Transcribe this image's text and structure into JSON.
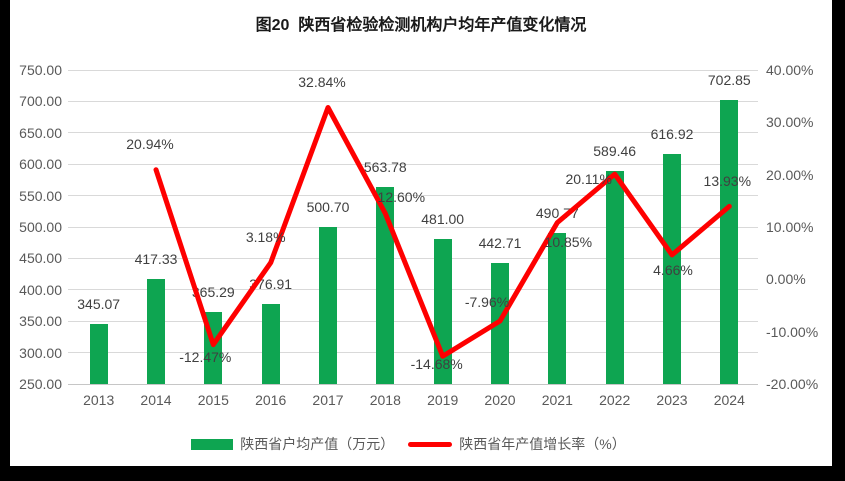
{
  "chart_data": {
    "type": "bar+line",
    "title": "图20  陕西省检验检测机构户均年产值变化情况",
    "categories": [
      "2013",
      "2014",
      "2015",
      "2016",
      "2017",
      "2018",
      "2019",
      "2020",
      "2021",
      "2022",
      "2023",
      "2024"
    ],
    "series": [
      {
        "name": "陕西省户均产值（万元）",
        "type": "bar",
        "axis": "left",
        "color": "#0ea551",
        "values": [
          345.07,
          417.33,
          365.29,
          376.91,
          500.7,
          563.78,
          481.0,
          442.71,
          490.77,
          589.46,
          616.92,
          702.85
        ],
        "labels": [
          "345.07",
          "417.33",
          "365.29",
          "376.91",
          "500.70",
          "563.78",
          "481.00",
          "442.71",
          "490.77",
          "589.46",
          "616.92",
          "702.85"
        ]
      },
      {
        "name": "陕西省年产值增长率（%）",
        "type": "line",
        "axis": "right",
        "color": "#fe0000",
        "values": [
          null,
          20.94,
          -12.47,
          3.18,
          32.84,
          12.6,
          -14.68,
          -7.96,
          10.85,
          20.11,
          4.66,
          13.93
        ],
        "labels": [
          null,
          "20.94%",
          "-12.47%",
          "3.18%",
          "32.84%",
          "12.60%",
          "-14.68%",
          "-7.96%",
          "10.85%",
          "20.11%",
          "4.66%",
          "13.93%"
        ]
      }
    ],
    "left_axis": {
      "min": 250,
      "max": 750,
      "step": 50,
      "tick_labels": [
        "750.00",
        "700.00",
        "650.00",
        "600.00",
        "550.00",
        "500.00",
        "450.00",
        "400.00",
        "350.00",
        "300.00",
        "250.00"
      ]
    },
    "right_axis": {
      "min": -20,
      "max": 40,
      "step": 10,
      "tick_labels": [
        "40.00%",
        "30.00%",
        "20.00%",
        "10.00%",
        "0.00%",
        "-10.00%",
        "-20.00%"
      ]
    },
    "grid": true,
    "legend_position": "bottom",
    "background": "#ffffff",
    "frame_color": "#000000",
    "gridline_color": "#d9d9d9",
    "line_label_offsets": [
      null,
      [
        -6,
        -26
      ],
      [
        -8,
        12
      ],
      [
        -5,
        -26
      ],
      [
        -6,
        -26
      ],
      [
        16,
        -16
      ],
      [
        -6,
        8
      ],
      [
        -13,
        -19
      ],
      [
        11,
        19
      ],
      [
        -26,
        5
      ],
      [
        1,
        15
      ],
      [
        -2,
        -25
      ]
    ]
  }
}
